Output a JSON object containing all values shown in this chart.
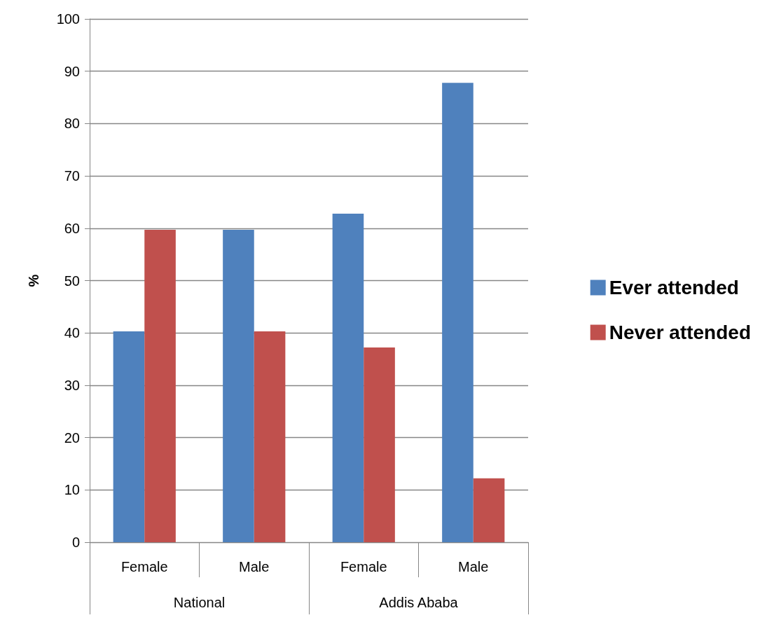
{
  "chart_data": {
    "type": "bar",
    "ylabel": "%",
    "categories": [
      "Female",
      "Male",
      "Female",
      "Male"
    ],
    "annotations": [
      "National",
      "Addis Ababa"
    ],
    "series": [
      {
        "name": "Ever attended",
        "color": "#4f81bd",
        "values": [
          40.3,
          59.7,
          62.8,
          87.8
        ]
      },
      {
        "name": "Never attended",
        "color": "#c0504d",
        "values": [
          59.7,
          40.3,
          37.2,
          12.2
        ]
      }
    ],
    "ylim": [
      0,
      100
    ],
    "yticks": [
      0,
      10,
      20,
      30,
      40,
      50,
      60,
      70,
      80,
      90,
      100
    ],
    "grid": "y",
    "legend": "right"
  }
}
